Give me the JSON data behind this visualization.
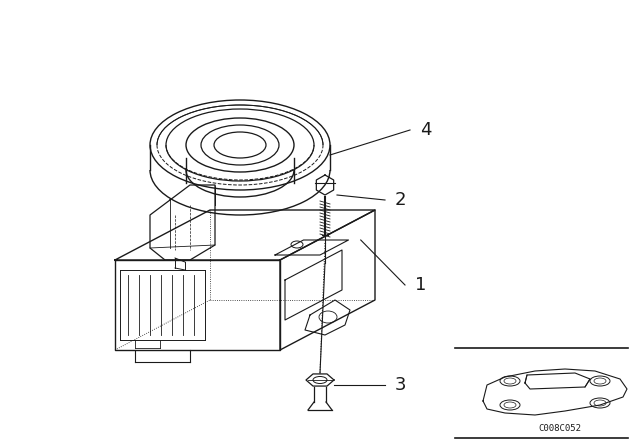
{
  "bg_color": "#ffffff",
  "line_color": "#1a1a1a",
  "fig_width": 6.4,
  "fig_height": 4.48,
  "dpi": 100,
  "ref_code": "C008C052"
}
